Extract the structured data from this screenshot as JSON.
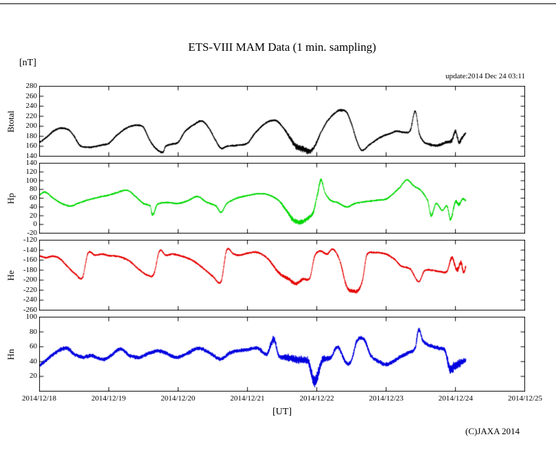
{
  "title": "ETS-VIII MAM Data (1 min. sampling)",
  "unit_label": "[nT]",
  "update_label": "update:2014 Dec 24 03:11",
  "xaxis_label": "[UT]",
  "copyright": "(C)JAXA 2014",
  "chart_data": {
    "type": "line",
    "title": "ETS-VIII MAM Data (1 min. sampling)",
    "ylabel_unit": "nT",
    "xlabel": "UT",
    "x_axis": {
      "tick_labels": [
        "2014/12/18",
        "2014/12/19",
        "2014/12/20",
        "2014/12/21",
        "2014/12/22",
        "2014/12/23",
        "2014/12/24",
        "2014/12/25"
      ],
      "lim_days": [
        0,
        7
      ],
      "data_end_day": 6.15
    },
    "panels": [
      {
        "label": "Btotal",
        "color": "#000000",
        "ylim": [
          140,
          280
        ],
        "yticks": [
          280,
          260,
          240,
          220,
          200,
          180,
          160,
          140
        ],
        "noise_nT": 2.5,
        "series_points_day_value": [
          [
            0.0,
            168
          ],
          [
            0.1,
            178
          ],
          [
            0.2,
            190
          ],
          [
            0.3,
            196
          ],
          [
            0.42,
            193
          ],
          [
            0.5,
            180
          ],
          [
            0.58,
            162
          ],
          [
            0.7,
            158
          ],
          [
            0.82,
            160
          ],
          [
            0.92,
            163
          ],
          [
            1.0,
            166
          ],
          [
            1.1,
            180
          ],
          [
            1.25,
            196
          ],
          [
            1.4,
            202
          ],
          [
            1.5,
            198
          ],
          [
            1.58,
            175
          ],
          [
            1.66,
            158
          ],
          [
            1.78,
            148
          ],
          [
            1.82,
            160
          ],
          [
            1.9,
            164
          ],
          [
            2.0,
            168
          ],
          [
            2.1,
            190
          ],
          [
            2.25,
            205
          ],
          [
            2.35,
            210
          ],
          [
            2.45,
            195
          ],
          [
            2.55,
            170
          ],
          [
            2.62,
            156
          ],
          [
            2.7,
            160
          ],
          [
            2.85,
            162
          ],
          [
            3.0,
            166
          ],
          [
            3.1,
            185
          ],
          [
            3.25,
            205
          ],
          [
            3.4,
            212
          ],
          [
            3.5,
            200
          ],
          [
            3.6,
            180,
            2
          ],
          [
            3.7,
            160,
            3
          ],
          [
            3.8,
            155,
            3.5
          ],
          [
            3.9,
            150,
            3
          ],
          [
            3.97,
            160,
            2
          ],
          [
            4.05,
            185
          ],
          [
            4.15,
            210
          ],
          [
            4.28,
            228
          ],
          [
            4.35,
            232,
            1.5
          ],
          [
            4.43,
            228
          ],
          [
            4.5,
            205
          ],
          [
            4.58,
            170
          ],
          [
            4.65,
            152
          ],
          [
            4.75,
            162
          ],
          [
            4.85,
            172
          ],
          [
            4.95,
            180
          ],
          [
            5.05,
            185
          ],
          [
            5.15,
            190
          ],
          [
            5.25,
            188
          ],
          [
            5.35,
            192
          ],
          [
            5.42,
            230
          ],
          [
            5.48,
            185
          ],
          [
            5.55,
            168
          ],
          [
            5.65,
            163,
            1.5
          ],
          [
            5.75,
            162,
            1.5
          ],
          [
            5.85,
            167,
            1.5
          ],
          [
            5.95,
            172,
            2
          ],
          [
            6.0,
            190,
            2
          ],
          [
            6.05,
            168,
            2
          ],
          [
            6.1,
            178,
            2
          ],
          [
            6.15,
            186
          ]
        ]
      },
      {
        "label": "Hp",
        "color": "#00d800",
        "ylim": [
          -20,
          140
        ],
        "yticks": [
          140,
          120,
          100,
          80,
          60,
          40,
          20,
          0,
          -20
        ],
        "noise_nT": 2.5,
        "series_points_day_value": [
          [
            0.0,
            68
          ],
          [
            0.08,
            74
          ],
          [
            0.2,
            60
          ],
          [
            0.32,
            48
          ],
          [
            0.45,
            42
          ],
          [
            0.55,
            48
          ],
          [
            0.68,
            55
          ],
          [
            0.8,
            60
          ],
          [
            0.9,
            64
          ],
          [
            1.0,
            67
          ],
          [
            1.1,
            72
          ],
          [
            1.27,
            78
          ],
          [
            1.4,
            62
          ],
          [
            1.5,
            48
          ],
          [
            1.6,
            42
          ],
          [
            1.63,
            22,
            2
          ],
          [
            1.7,
            46
          ],
          [
            1.85,
            50
          ],
          [
            2.0,
            48
          ],
          [
            2.15,
            55
          ],
          [
            2.28,
            64
          ],
          [
            2.4,
            52
          ],
          [
            2.55,
            42
          ],
          [
            2.62,
            28
          ],
          [
            2.7,
            48
          ],
          [
            2.85,
            60
          ],
          [
            3.0,
            66
          ],
          [
            3.15,
            70
          ],
          [
            3.3,
            68
          ],
          [
            3.45,
            55
          ],
          [
            3.55,
            35,
            2
          ],
          [
            3.65,
            12,
            3
          ],
          [
            3.75,
            5,
            3
          ],
          [
            3.85,
            12,
            2.5
          ],
          [
            3.95,
            28,
            2
          ],
          [
            4.02,
            75,
            2
          ],
          [
            4.06,
            102,
            2
          ],
          [
            4.12,
            72
          ],
          [
            4.2,
            55
          ],
          [
            4.3,
            50
          ],
          [
            4.43,
            40
          ],
          [
            4.55,
            48
          ],
          [
            4.7,
            52
          ],
          [
            4.85,
            55
          ],
          [
            5.0,
            58
          ],
          [
            5.1,
            70
          ],
          [
            5.2,
            85
          ],
          [
            5.3,
            102
          ],
          [
            5.4,
            88
          ],
          [
            5.5,
            78
          ],
          [
            5.6,
            55
          ],
          [
            5.65,
            20,
            2
          ],
          [
            5.72,
            48
          ],
          [
            5.81,
            32
          ],
          [
            5.88,
            42
          ],
          [
            5.93,
            12,
            2
          ],
          [
            6.0,
            52,
            2
          ],
          [
            6.05,
            45,
            2
          ],
          [
            6.1,
            58,
            1.5
          ],
          [
            6.15,
            55
          ]
        ]
      },
      {
        "label": "He",
        "color": "#e60000",
        "ylim": [
          -260,
          -120
        ],
        "yticks": [
          -120,
          -140,
          -160,
          -180,
          -200,
          -220,
          -240,
          -260
        ],
        "noise_nT": 2.5,
        "series_points_day_value": [
          [
            0.0,
            -152
          ],
          [
            0.1,
            -155
          ],
          [
            0.2,
            -152
          ],
          [
            0.3,
            -158
          ],
          [
            0.42,
            -175
          ],
          [
            0.52,
            -188
          ],
          [
            0.62,
            -195
          ],
          [
            0.7,
            -146
          ],
          [
            0.8,
            -150
          ],
          [
            0.9,
            -148
          ],
          [
            1.0,
            -151
          ],
          [
            1.15,
            -153
          ],
          [
            1.3,
            -162
          ],
          [
            1.45,
            -180
          ],
          [
            1.56,
            -190
          ],
          [
            1.65,
            -188
          ],
          [
            1.73,
            -142
          ],
          [
            1.82,
            -150
          ],
          [
            1.92,
            -148
          ],
          [
            2.05,
            -152
          ],
          [
            2.2,
            -160
          ],
          [
            2.35,
            -175
          ],
          [
            2.5,
            -192
          ],
          [
            2.62,
            -203
          ],
          [
            2.7,
            -140
          ],
          [
            2.8,
            -148
          ],
          [
            2.9,
            -150
          ],
          [
            3.0,
            -146
          ],
          [
            3.15,
            -145
          ],
          [
            3.3,
            -158
          ],
          [
            3.45,
            -185,
            1.5
          ],
          [
            3.6,
            -198,
            2
          ],
          [
            3.7,
            -207,
            2
          ],
          [
            3.8,
            -198,
            1.5
          ],
          [
            3.9,
            -196
          ],
          [
            3.97,
            -152
          ],
          [
            4.05,
            -142
          ],
          [
            4.15,
            -148
          ],
          [
            4.23,
            -138
          ],
          [
            4.33,
            -160
          ],
          [
            4.43,
            -212,
            1.5
          ],
          [
            4.52,
            -222,
            2
          ],
          [
            4.6,
            -220,
            2
          ],
          [
            4.66,
            -200
          ],
          [
            4.72,
            -150
          ],
          [
            4.85,
            -145
          ],
          [
            5.0,
            -148
          ],
          [
            5.12,
            -158
          ],
          [
            5.22,
            -172
          ],
          [
            5.35,
            -178
          ],
          [
            5.47,
            -203
          ],
          [
            5.55,
            -182
          ],
          [
            5.65,
            -180
          ],
          [
            5.78,
            -183
          ],
          [
            5.88,
            -182
          ],
          [
            5.95,
            -155,
            2
          ],
          [
            6.02,
            -180,
            2.5
          ],
          [
            6.08,
            -165,
            2.5
          ],
          [
            6.12,
            -185,
            2
          ],
          [
            6.15,
            -172
          ]
        ]
      },
      {
        "label": "Hn",
        "color": "#0000e0",
        "ylim": [
          0,
          100
        ],
        "yticks": [
          100,
          80,
          60,
          40,
          20
        ],
        "noise_nT": 3.5,
        "series_points_day_value": [
          [
            0.0,
            35
          ],
          [
            0.1,
            42
          ],
          [
            0.2,
            50
          ],
          [
            0.3,
            56
          ],
          [
            0.4,
            58
          ],
          [
            0.5,
            50
          ],
          [
            0.62,
            46
          ],
          [
            0.75,
            48
          ],
          [
            0.9,
            43
          ],
          [
            1.0,
            46
          ],
          [
            1.17,
            57
          ],
          [
            1.3,
            48
          ],
          [
            1.45,
            46
          ],
          [
            1.6,
            52
          ],
          [
            1.75,
            54
          ],
          [
            1.9,
            48
          ],
          [
            2.0,
            46
          ],
          [
            2.15,
            52
          ],
          [
            2.3,
            58
          ],
          [
            2.45,
            52
          ],
          [
            2.62,
            43
          ],
          [
            2.75,
            52
          ],
          [
            2.9,
            55
          ],
          [
            3.0,
            56
          ],
          [
            3.15,
            58
          ],
          [
            3.28,
            50
          ],
          [
            3.38,
            70,
            2
          ],
          [
            3.45,
            48
          ],
          [
            3.6,
            45,
            2
          ],
          [
            3.75,
            42,
            2
          ],
          [
            3.88,
            40,
            2
          ],
          [
            3.95,
            15,
            3
          ],
          [
            4.0,
            18,
            3
          ],
          [
            4.08,
            42,
            2
          ],
          [
            4.2,
            45
          ],
          [
            4.3,
            60
          ],
          [
            4.43,
            38
          ],
          [
            4.5,
            42
          ],
          [
            4.58,
            68
          ],
          [
            4.68,
            70
          ],
          [
            4.78,
            48
          ],
          [
            4.9,
            40
          ],
          [
            5.0,
            36
          ],
          [
            5.1,
            40
          ],
          [
            5.2,
            46
          ],
          [
            5.32,
            52
          ],
          [
            5.42,
            58
          ],
          [
            5.47,
            83
          ],
          [
            5.53,
            68
          ],
          [
            5.62,
            62
          ],
          [
            5.75,
            58
          ],
          [
            5.85,
            55
          ],
          [
            5.92,
            30,
            2.5
          ],
          [
            6.0,
            35,
            2.5
          ],
          [
            6.07,
            38,
            2
          ],
          [
            6.15,
            42
          ]
        ]
      }
    ]
  }
}
